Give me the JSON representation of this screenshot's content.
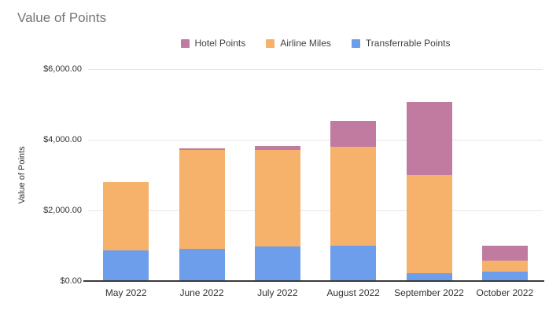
{
  "title": "Value of Points",
  "chart_data": {
    "type": "bar",
    "stacked": true,
    "title": "Value of Points",
    "xlabel": "",
    "ylabel": "Value of Points",
    "grid": true,
    "legend_position": "top",
    "legend_order": [
      2,
      1,
      0
    ],
    "categories": [
      "May 2022",
      "June 2022",
      "July 2022",
      "August 2022",
      "September 2022",
      "October 2022"
    ],
    "series": [
      {
        "name": "Transferrable Points",
        "color": "#6d9eeb",
        "values": [
          860,
          920,
          970,
          1000,
          220,
          270
        ]
      },
      {
        "name": "Airline Miles",
        "color": "#f6b26b",
        "values": [
          1940,
          2800,
          2740,
          2800,
          2790,
          310
        ]
      },
      {
        "name": "Hotel Points",
        "color": "#c27ba0",
        "values": [
          0,
          35,
          120,
          740,
          2050,
          420
        ]
      }
    ],
    "totals": [
      2800,
      3755,
      3830,
      4540,
      5060,
      1000
    ],
    "ylim": [
      0,
      6000
    ],
    "y_ticks": [
      {
        "value": 0,
        "label": "$0.00"
      },
      {
        "value": 2000,
        "label": "$2,000.00"
      },
      {
        "value": 4000,
        "label": "$4,000.00"
      },
      {
        "value": 6000,
        "label": "$6,000.00"
      }
    ]
  },
  "colors": {
    "background": "#ffffff",
    "title_text": "#757575",
    "axis_text": "#333333",
    "legend_text": "#424242",
    "gridline": "#e6e6e6",
    "axis_line": "#3a3a3a"
  }
}
